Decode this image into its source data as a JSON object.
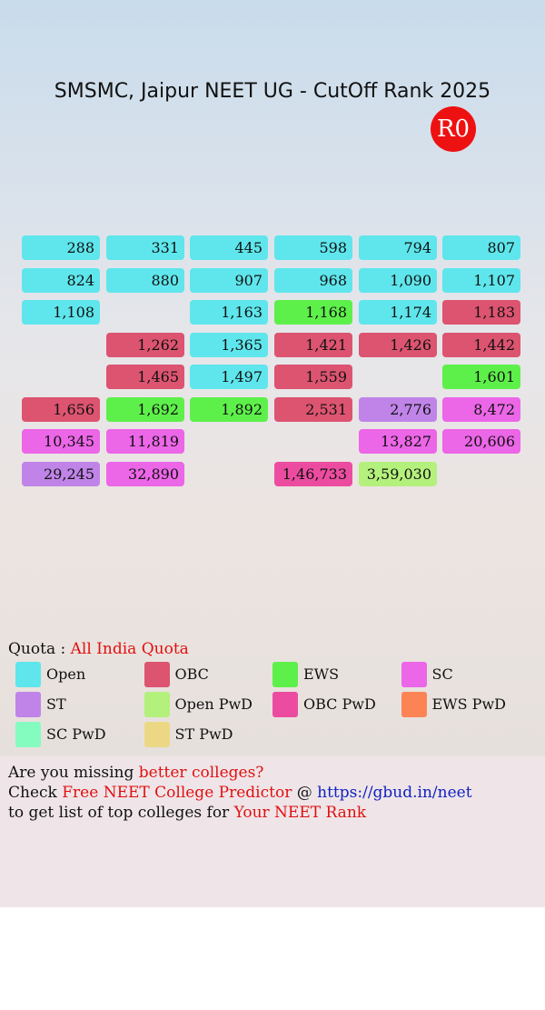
{
  "header": {
    "title": "SMSMC, Jaipur NEET UG - CutOff Rank 2025",
    "round": "R0"
  },
  "grid": {
    "rows": [
      [
        {
          "label": "288",
          "color": "#5ee6ec"
        },
        {
          "label": "331",
          "color": "#5ee6ec"
        },
        {
          "label": "445",
          "color": "#5ee6ec"
        },
        {
          "label": "598",
          "color": "#5ee6ec"
        },
        {
          "label": "794",
          "color": "#5ee6ec"
        },
        {
          "label": "807",
          "color": "#5ee6ec"
        }
      ],
      [
        {
          "label": "824",
          "color": "#5ee6ec"
        },
        {
          "label": "880",
          "color": "#5ee6ec"
        },
        {
          "label": "907",
          "color": "#5ee6ec"
        },
        {
          "label": "968",
          "color": "#5ee6ec"
        },
        {
          "label": "1,090",
          "color": "#5ee6ec"
        },
        {
          "label": "1,107",
          "color": "#5ee6ec"
        }
      ],
      [
        {
          "label": "1,108",
          "color": "#5ee6ec"
        },
        null,
        {
          "label": "1,163",
          "color": "#5ee6ec"
        },
        {
          "label": "1,168",
          "color": "#5ef04a"
        },
        {
          "label": "1,174",
          "color": "#5ee6ec"
        },
        {
          "label": "1,183",
          "color": "#dc5470"
        }
      ],
      [
        null,
        {
          "label": "1,262",
          "color": "#dc5470"
        },
        {
          "label": "1,365",
          "color": "#5ee6ec"
        },
        {
          "label": "1,421",
          "color": "#dc5470"
        },
        {
          "label": "1,426",
          "color": "#dc5470"
        },
        {
          "label": "1,442",
          "color": "#dc5470"
        }
      ],
      [
        null,
        {
          "label": "1,465",
          "color": "#dc5470"
        },
        {
          "label": "1,497",
          "color": "#5ee6ec"
        },
        {
          "label": "1,559",
          "color": "#dc5470"
        },
        null,
        {
          "label": "1,601",
          "color": "#5ef04a"
        }
      ],
      [
        {
          "label": "1,656",
          "color": "#dc5470"
        },
        {
          "label": "1,692",
          "color": "#5ef04a"
        },
        {
          "label": "1,892",
          "color": "#5ef04a"
        },
        {
          "label": "2,531",
          "color": "#dc5470"
        },
        {
          "label": "2,776",
          "color": "#c084e8"
        },
        {
          "label": "8,472",
          "color": "#ec66e8"
        }
      ],
      [
        {
          "label": "10,345",
          "color": "#ec66e8"
        },
        {
          "label": "11,819",
          "color": "#ec66e8"
        },
        null,
        null,
        {
          "label": "13,827",
          "color": "#ec66e8"
        },
        {
          "label": "20,606",
          "color": "#ec66e8"
        }
      ],
      [
        {
          "label": "29,245",
          "color": "#c084e8"
        },
        {
          "label": "32,890",
          "color": "#ec66e8"
        },
        null,
        {
          "label": "1,46,733",
          "color": "#ec4ca0"
        },
        {
          "label": "3,59,030",
          "color": "#b4f07c"
        },
        null
      ]
    ]
  },
  "quota": {
    "label": "Quota :",
    "value": "All India Quota"
  },
  "legend": [
    {
      "name": "Open",
      "color": "#5ee6ec"
    },
    {
      "name": "OBC",
      "color": "#dc5470"
    },
    {
      "name": "EWS",
      "color": "#5ef04a"
    },
    {
      "name": "SC",
      "color": "#ec66e8"
    },
    {
      "name": "ST",
      "color": "#c084e8"
    },
    {
      "name": "Open PwD",
      "color": "#b4f07c"
    },
    {
      "name": "OBC PwD",
      "color": "#ec4ca0"
    },
    {
      "name": "EWS PwD",
      "color": "#fc8454"
    },
    {
      "name": "SC PwD",
      "color": "#84fcc0"
    },
    {
      "name": "ST PwD",
      "color": "#ecd884"
    }
  ],
  "footer": {
    "lines": [
      [
        {
          "text": "Are you missing ",
          "color": "#111111"
        },
        {
          "text": "better colleges?",
          "color": "#e01010"
        }
      ],
      [
        {
          "text": "Check ",
          "color": "#111111"
        },
        {
          "text": "Free NEET College Predictor",
          "color": "#e01010"
        },
        {
          "text": " @ ",
          "color": "#111111"
        },
        {
          "text": "https://gbud.in/neet",
          "color": "#1020c0"
        }
      ],
      [
        {
          "text": "to get list of top colleges for ",
          "color": "#111111"
        },
        {
          "text": "Your NEET Rank",
          "color": "#e01010"
        }
      ]
    ]
  }
}
